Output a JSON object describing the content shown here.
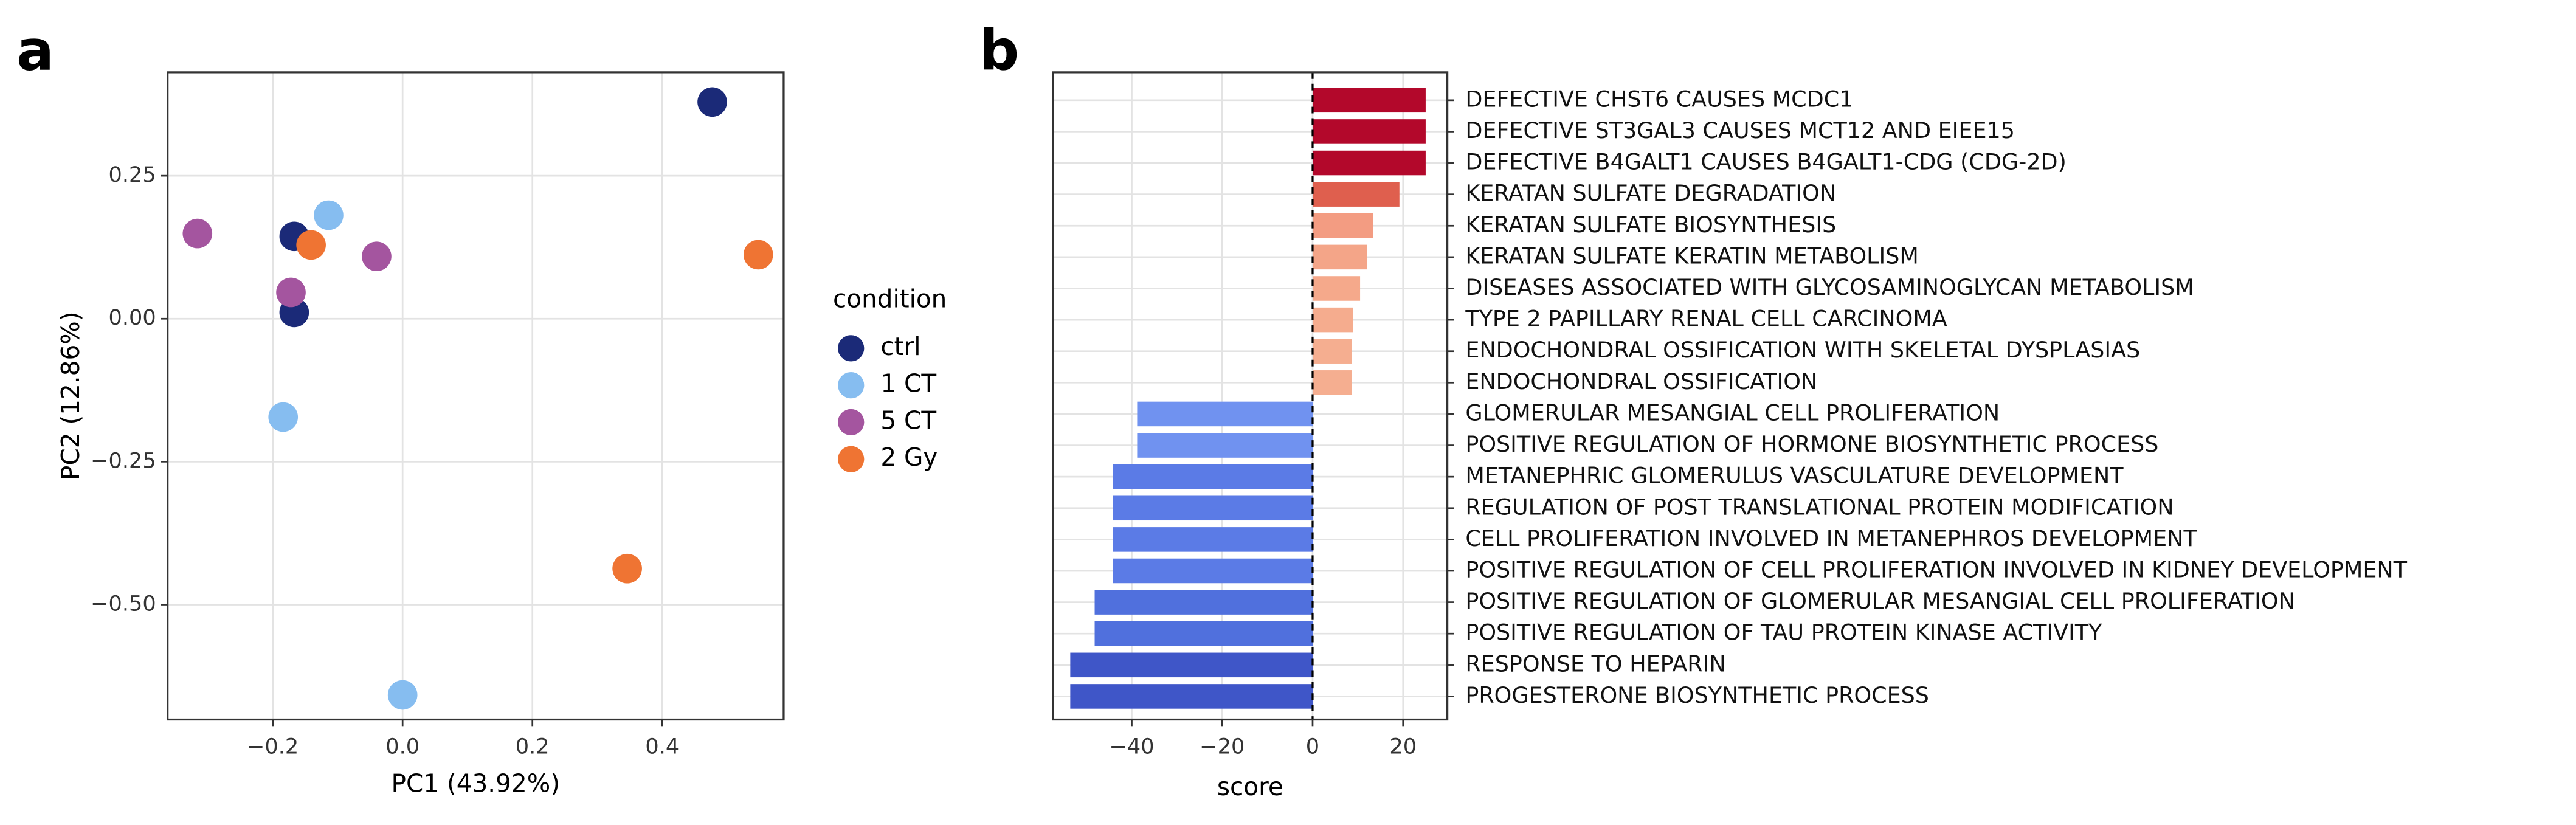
{
  "chart_data": [
    {
      "type": "scatter",
      "label": "a",
      "xlabel": "PC1 (43.92%)",
      "ylabel": "PC2 (12.86%)",
      "legend_title": "condition",
      "xlim": [
        -0.362,
        0.587
      ],
      "ylim": [
        -0.701,
        0.431
      ],
      "xticks": [
        {
          "value": -0.2,
          "label": "−0.2"
        },
        {
          "value": 0,
          "label": "0.0"
        },
        0.2,
        0.4
      ],
      "yticks": [
        {
          "value": -0.5,
          "label": "−0.50"
        },
        {
          "value": -0.25,
          "label": "−0.25"
        },
        {
          "value": 0,
          "label": "0.00"
        },
        0.25
      ],
      "grid": true,
      "series": [
        {
          "name": "ctrl",
          "color": "#1b2a78",
          "x": [
            0.477,
            -0.167,
            -0.167
          ],
          "values": [
            0.379,
            0.144,
            0.011
          ]
        },
        {
          "name": "1 CT",
          "color": "#86bdf0",
          "x": [
            -0.114,
            -0.184,
            0.0
          ],
          "values": [
            0.181,
            -0.172,
            -0.658
          ]
        },
        {
          "name": "5 CT",
          "color": "#a4559f",
          "x": [
            -0.316,
            -0.04,
            -0.172
          ],
          "values": [
            0.149,
            0.109,
            0.046
          ]
        },
        {
          "name": "2 Gy",
          "color": "#ef7433",
          "x": [
            -0.141,
            0.548,
            0.346
          ],
          "values": [
            0.129,
            0.112,
            -0.437
          ]
        }
      ]
    },
    {
      "type": "barh",
      "label": "b",
      "xlabel": "score",
      "xlim": [
        -57.4,
        29.8
      ],
      "xticks": [
        {
          "value": -40,
          "label": "−40"
        },
        {
          "value": -20,
          "label": "−20"
        },
        0,
        20
      ],
      "grid": true,
      "categories": [
        "DEFECTIVE CHST6 CAUSES MCDC1",
        "DEFECTIVE ST3GAL3 CAUSES MCT12 AND EIEE15",
        "DEFECTIVE B4GALT1 CAUSES B4GALT1-CDG (CDG-2D)",
        "KERATAN SULFATE DEGRADATION",
        "KERATAN SULFATE BIOSYNTHESIS",
        "KERATAN SULFATE KERATIN METABOLISM",
        "DISEASES ASSOCIATED WITH GLYCOSAMINOGLYCAN METABOLISM",
        "TYPE 2 PAPILLARY RENAL CELL CARCINOMA",
        "ENDOCHONDRAL OSSIFICATION WITH SKELETAL DYSPLASIAS",
        "ENDOCHONDRAL OSSIFICATION",
        "GLOMERULAR MESANGIAL CELL PROLIFERATION",
        "POSITIVE REGULATION OF HORMONE BIOSYNTHETIC PROCESS",
        "METANEPHRIC GLOMERULUS VASCULATURE DEVELOPMENT",
        "REGULATION OF POST TRANSLATIONAL PROTEIN MODIFICATION",
        "CELL PROLIFERATION INVOLVED IN METANEPHROS DEVELOPMENT",
        "POSITIVE REGULATION OF CELL PROLIFERATION INVOLVED IN KIDNEY DEVELOPMENT",
        "POSITIVE REGULATION OF GLOMERULAR MESANGIAL CELL PROLIFERATION",
        "POSITIVE REGULATION OF TAU PROTEIN KINASE ACTIVITY",
        "RESPONSE TO HEPARIN",
        "PROGESTERONE BIOSYNTHETIC PROCESS"
      ],
      "values": [
        25,
        25,
        25,
        19.2,
        13.4,
        12,
        10.5,
        9,
        8.7,
        8.7,
        -38.8,
        -38.8,
        -44.2,
        -44.2,
        -44.2,
        -44.2,
        -48.2,
        -48.2,
        -53.6,
        -53.6
      ],
      "colors": [
        "#b3082b",
        "#b3082b",
        "#b3082b",
        "#df5f4e",
        "#f39c82",
        "#f4a588",
        "#f5a98b",
        "#f5ac8e",
        "#f5ae90",
        "#f5ae90",
        "#7092f0",
        "#7092f0",
        "#5b7be6",
        "#5b7be6",
        "#5b7be6",
        "#5b7be6",
        "#5070dd",
        "#5070dd",
        "#3f56c8",
        "#3f56c8"
      ]
    }
  ]
}
